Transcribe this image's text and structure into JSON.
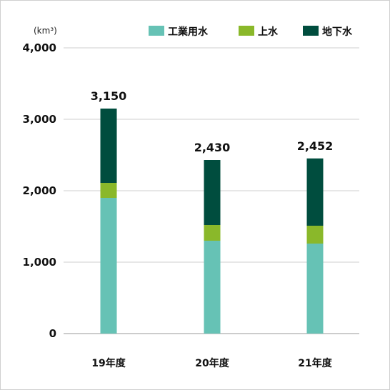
{
  "chart_data": {
    "type": "bar",
    "stacked": true,
    "unit": "(km³)",
    "categories": [
      "19年度",
      "20年度",
      "21年度"
    ],
    "series": [
      {
        "name": "工業用水",
        "color": "#66c2b5",
        "values": [
          1900,
          1300,
          1260
        ]
      },
      {
        "name": "上水",
        "color": "#8ab82a",
        "values": [
          210,
          220,
          250
        ]
      },
      {
        "name": "地下水",
        "color": "#004d3e",
        "values": [
          1040,
          910,
          942
        ]
      }
    ],
    "totals": [
      "3,150",
      "2,430",
      "2,452"
    ],
    "total_values": [
      3150,
      2430,
      2452
    ],
    "ylim": [
      0,
      4000
    ],
    "yticks": [
      0,
      1000,
      2000,
      3000,
      4000
    ],
    "ytick_labels": [
      "0",
      "1,000",
      "2,000",
      "3,000",
      "4,000"
    ],
    "grid": true,
    "legend_position": "top-right"
  }
}
